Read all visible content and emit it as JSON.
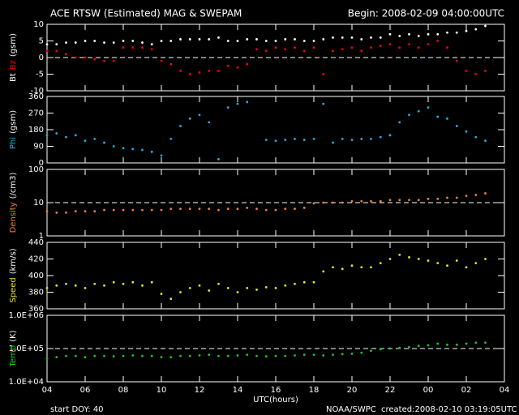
{
  "title": "ACE RTSW (Estimated) MAG & SWEPAM",
  "begin": "Begin: 2008-02-09 04:00:00UTC",
  "xlabel": "UTC(hours)",
  "start_doy": "start DOY: 40",
  "credit": "NOAA/SWPC",
  "created": "created:2008-02-10 03:19:05UTC",
  "chart_data": [
    {
      "type": "scatter",
      "ylabel": "(gsm)",
      "ylim": [
        -10,
        10
      ],
      "yticks": [
        -10,
        -5,
        0,
        5,
        10
      ],
      "hline": 0,
      "xlim": [
        0,
        24
      ],
      "xticks": [
        0,
        2,
        4,
        6,
        8,
        10,
        12,
        14,
        16,
        18,
        20,
        22,
        24
      ],
      "x": [
        0,
        0.5,
        1,
        1.5,
        2,
        2.5,
        3,
        3.5,
        4,
        4.5,
        5,
        5.5,
        6,
        6.5,
        7,
        7.5,
        8,
        8.5,
        9,
        9.5,
        10,
        10.5,
        11,
        11.5,
        12,
        12.5,
        13,
        13.5,
        14,
        14.5,
        15,
        15.5,
        16,
        16.5,
        17,
        17.5,
        18,
        18.5,
        19,
        19.5,
        20,
        20.5,
        21,
        21.5,
        22,
        22.5,
        23,
        23.5,
        24
      ],
      "series": [
        {
          "name": "Bt",
          "color": "#ffffff",
          "values": [
            4,
            4,
            4.5,
            4.5,
            5,
            5,
            4.5,
            4.5,
            5,
            5,
            4.5,
            4,
            5,
            5,
            5.5,
            5.5,
            5.5,
            5.5,
            6,
            5,
            5,
            5.5,
            5.5,
            5,
            5,
            5.5,
            5.5,
            5,
            5,
            5.5,
            6,
            6,
            6,
            5.5,
            6,
            6,
            7,
            6.5,
            7,
            6.5,
            7,
            7,
            7.5,
            7.5,
            8,
            8.5,
            9.5,
            null,
            null
          ]
        },
        {
          "name": "Bz",
          "color": "#ff0000",
          "values": [
            2,
            2,
            1,
            0,
            0,
            -0.5,
            -1,
            -1,
            3,
            3,
            3,
            2.5,
            -1,
            -2,
            -4,
            -5,
            -4.5,
            -4,
            -4,
            -2.5,
            -3,
            -2,
            2.5,
            2,
            3,
            2.5,
            3,
            2,
            3,
            -5,
            2,
            2.5,
            3,
            2,
            3,
            3.5,
            4,
            3,
            4,
            3,
            4,
            5,
            3,
            -1,
            -4,
            -5,
            -4,
            null,
            null
          ]
        }
      ]
    },
    {
      "type": "scatter",
      "ylabel": "(gsm)",
      "ylim": [
        0,
        360
      ],
      "yticks": [
        0,
        90,
        180,
        270,
        360
      ],
      "xlim": [
        0,
        24
      ],
      "xticks": [
        0,
        2,
        4,
        6,
        8,
        10,
        12,
        14,
        16,
        18,
        20,
        22,
        24
      ],
      "x": [
        0,
        0.5,
        1,
        1.5,
        2,
        2.5,
        3,
        3.5,
        4,
        4.5,
        5,
        5.5,
        6,
        6.5,
        7,
        7.5,
        8,
        8.5,
        9,
        9.5,
        10,
        10.5,
        11,
        11.5,
        12,
        12.5,
        13,
        13.5,
        14,
        14.5,
        15,
        15.5,
        16,
        16.5,
        17,
        17.5,
        18,
        18.5,
        19,
        19.5,
        20,
        20.5,
        21,
        21.5,
        22,
        22.5,
        23,
        23.5,
        24
      ],
      "series": [
        {
          "name": "Phi",
          "color": "#20b0e0",
          "values": [
            150,
            160,
            140,
            150,
            120,
            130,
            110,
            90,
            80,
            75,
            70,
            60,
            40,
            130,
            200,
            240,
            260,
            220,
            20,
            300,
            320,
            330,
            null,
            125,
            120,
            125,
            130,
            125,
            130,
            320,
            110,
            130,
            125,
            130,
            130,
            140,
            150,
            220,
            260,
            280,
            300,
            250,
            240,
            200,
            170,
            140,
            120,
            null,
            null
          ]
        }
      ]
    },
    {
      "type": "scatter",
      "ylabel": "(/cm3)",
      "log": true,
      "ylim": [
        1,
        100
      ],
      "yticks": [
        1,
        10,
        100
      ],
      "hline": 10,
      "xlim": [
        0,
        24
      ],
      "xticks": [
        0,
        2,
        4,
        6,
        8,
        10,
        12,
        14,
        16,
        18,
        20,
        22,
        24
      ],
      "x": [
        0,
        0.5,
        1,
        1.5,
        2,
        2.5,
        3,
        3.5,
        4,
        4.5,
        5,
        5.5,
        6,
        6.5,
        7,
        7.5,
        8,
        8.5,
        9,
        9.5,
        10,
        10.5,
        11,
        11.5,
        12,
        12.5,
        13,
        13.5,
        14,
        14.5,
        15,
        15.5,
        16,
        16.5,
        17,
        17.5,
        18,
        18.5,
        19,
        19.5,
        20,
        20.5,
        21,
        21.5,
        22,
        22.5,
        23,
        23.5,
        24
      ],
      "series": [
        {
          "name": "Density",
          "color": "#f08040",
          "values": [
            5.5,
            5,
            5,
            5.5,
            5.5,
            5.5,
            6,
            6,
            6,
            6,
            6,
            6,
            6,
            6.5,
            6.5,
            6.5,
            6.5,
            6.5,
            6,
            6.5,
            6.5,
            7,
            6.5,
            6,
            6,
            6.5,
            6.5,
            7,
            9.5,
            10,
            10,
            10,
            11,
            11,
            11,
            11,
            12,
            12,
            12,
            12,
            13,
            13,
            14,
            14,
            16,
            17,
            19,
            null,
            null
          ]
        }
      ]
    },
    {
      "type": "scatter",
      "ylabel": "(km/s)",
      "ylim": [
        360,
        440
      ],
      "yticks": [
        360,
        380,
        400,
        420,
        440
      ],
      "xlim": [
        0,
        24
      ],
      "xticks": [
        0,
        2,
        4,
        6,
        8,
        10,
        12,
        14,
        16,
        18,
        20,
        22,
        24
      ],
      "x": [
        0,
        0.5,
        1,
        1.5,
        2,
        2.5,
        3,
        3.5,
        4,
        4.5,
        5,
        5.5,
        6,
        6.5,
        7,
        7.5,
        8,
        8.5,
        9,
        9.5,
        10,
        10.5,
        11,
        11.5,
        12,
        12.5,
        13,
        13.5,
        14,
        14.5,
        15,
        15.5,
        16,
        16.5,
        17,
        17.5,
        18,
        18.5,
        19,
        19.5,
        20,
        20.5,
        21,
        21.5,
        22,
        22.5,
        23,
        23.5,
        24
      ],
      "series": [
        {
          "name": "Speed",
          "color": "#e6e620",
          "values": [
            385,
            388,
            390,
            388,
            385,
            390,
            388,
            392,
            390,
            392,
            388,
            392,
            378,
            372,
            380,
            385,
            388,
            382,
            390,
            385,
            380,
            385,
            383,
            386,
            385,
            388,
            390,
            392,
            392,
            405,
            410,
            408,
            412,
            410,
            410,
            415,
            420,
            425,
            422,
            420,
            418,
            415,
            412,
            418,
            410,
            415,
            420,
            null,
            null
          ]
        }
      ]
    },
    {
      "type": "scatter",
      "ylabel": "(K)",
      "log": true,
      "ylim": [
        10000,
        1000000
      ],
      "hline": 100000,
      "yticks": [
        {
          "value": 10000,
          "label": "1.0E+04"
        },
        {
          "value": 100000,
          "label": "1.0E+05"
        },
        {
          "value": 1000000,
          "label": "1.0E+06"
        }
      ],
      "xlim": [
        0,
        24
      ],
      "xticks": [
        {
          "value": 0,
          "label": "04"
        },
        {
          "value": 2,
          "label": "06"
        },
        {
          "value": 4,
          "label": "08"
        },
        {
          "value": 6,
          "label": "10"
        },
        {
          "value": 8,
          "label": "12"
        },
        {
          "value": 10,
          "label": "14"
        },
        {
          "value": 12,
          "label": "16"
        },
        {
          "value": 14,
          "label": "18"
        },
        {
          "value": 16,
          "label": "20"
        },
        {
          "value": 18,
          "label": "22"
        },
        {
          "value": 20,
          "label": "00"
        },
        {
          "value": 22,
          "label": "02"
        },
        {
          "value": 24,
          "label": "04"
        }
      ],
      "x": [
        0,
        0.5,
        1,
        1.5,
        2,
        2.5,
        3,
        3.5,
        4,
        4.5,
        5,
        5.5,
        6,
        6.5,
        7,
        7.5,
        8,
        8.5,
        9,
        9.5,
        10,
        10.5,
        11,
        11.5,
        12,
        12.5,
        13,
        13.5,
        14,
        14.5,
        15,
        15.5,
        16,
        16.5,
        17,
        17.5,
        18,
        18.5,
        19,
        19.5,
        20,
        20.5,
        21,
        21.5,
        22,
        22.5,
        23,
        23.5,
        24
      ],
      "series": [
        {
          "name": "Temp",
          "color": "#20c820",
          "values": [
            50000,
            55000,
            60000,
            60000,
            55000,
            60000,
            60000,
            58000,
            60000,
            62000,
            60000,
            60000,
            55000,
            55000,
            60000,
            60000,
            62000,
            65000,
            60000,
            60000,
            62000,
            65000,
            60000,
            58000,
            60000,
            60000,
            62000,
            65000,
            65000,
            62000,
            65000,
            68000,
            70000,
            75000,
            85000,
            95000,
            100000,
            105000,
            110000,
            120000,
            125000,
            140000,
            130000,
            130000,
            140000,
            150000,
            150000,
            null,
            null
          ]
        }
      ]
    }
  ]
}
